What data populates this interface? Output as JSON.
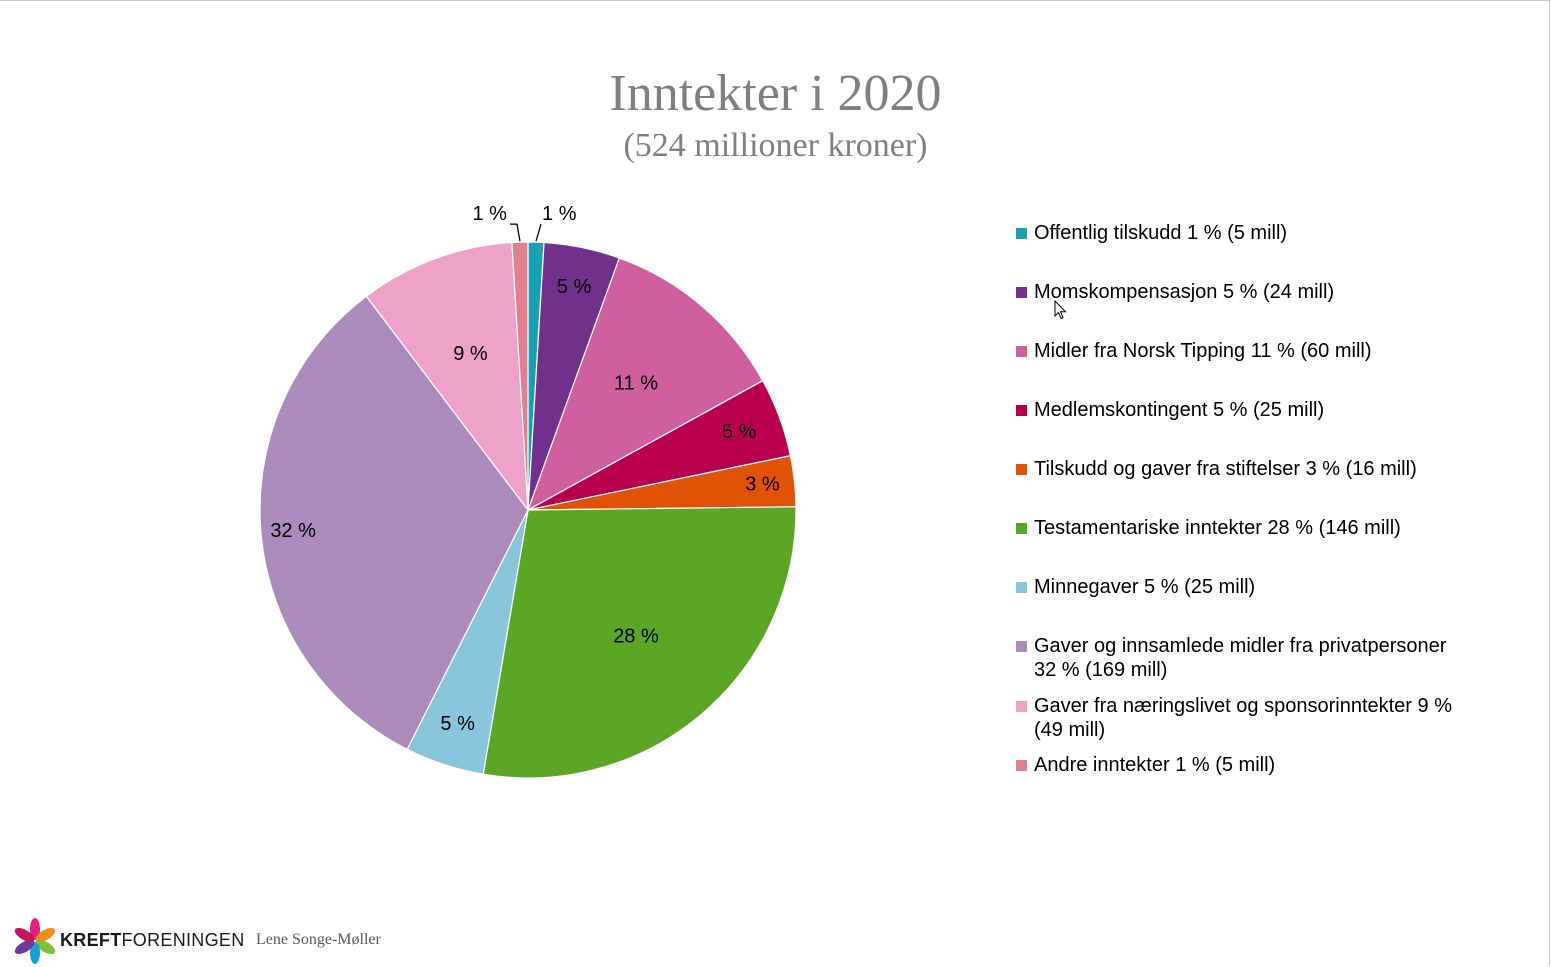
{
  "header": {
    "title": "Inntekter i 2020",
    "subtitle": "(524 millioner kroner)"
  },
  "chart_data": {
    "type": "pie",
    "title": "Inntekter i 2020",
    "subtitle": "(524 millioner kroner)",
    "categories": [
      "Offentlig tilskudd 1 % (5 mill)",
      "Momskompensasjon 5 % (24 mill)",
      "Midler fra Norsk Tipping 11 %  (60 mill)",
      "Medlemskontingent 5 % (25 mill)",
      "Tilskudd og gaver fra stiftelser 3 % (16 mill)",
      "Testamentariske inntekter 28 % (146 mill)",
      "Minnegaver 5 % (25 mill)",
      "Gaver og innsamlede midler fra privatpersoner 32 % (169 mill)",
      "Gaver fra næringslivet og sponsorinntekter 9 % (49 mill)",
      "Andre inntekter 1 % (5 mill)"
    ],
    "values": [
      5,
      24,
      60,
      25,
      16,
      146,
      25,
      169,
      49,
      5
    ],
    "data_labels": [
      "1 %",
      "5 %",
      "11 %",
      "5 %",
      "3 %",
      "28 %",
      "5 %",
      "32 %",
      "9 %",
      "1 %"
    ],
    "colors": [
      "#1aa0b4",
      "#70308c",
      "#cf5f9d",
      "#b8004f",
      "#e05306",
      "#5ba725",
      "#88c6dc",
      "#aa8bbb",
      "#eea2c8",
      "#e0808f"
    ],
    "legend_position": "right"
  },
  "footer": {
    "brand_bold": "KREFT",
    "brand_rest": "FORENINGEN",
    "author": "Lene Songe-Møller"
  },
  "icons": {
    "logo": "flower-logo-icon",
    "cursor": "mouse-pointer-icon"
  }
}
